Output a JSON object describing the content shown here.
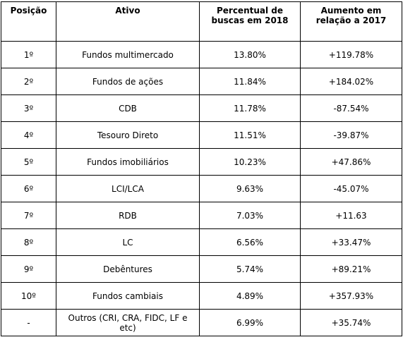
{
  "table": {
    "headers": {
      "posicao": "Posição",
      "ativo": "Ativo",
      "percentual": "Percentual de buscas em 2018",
      "aumento": "Aumento em relação a 2017"
    },
    "rows": [
      {
        "posicao": "1º",
        "ativo": "Fundos multimercado",
        "percentual": "13.80%",
        "aumento": "+119.78%"
      },
      {
        "posicao": "2º",
        "ativo": "Fundos de ações",
        "percentual": "11.84%",
        "aumento": "+184.02%"
      },
      {
        "posicao": "3º",
        "ativo": "CDB",
        "percentual": "11.78%",
        "aumento": "-87.54%"
      },
      {
        "posicao": "4º",
        "ativo": "Tesouro Direto",
        "percentual": "11.51%",
        "aumento": "-39.87%"
      },
      {
        "posicao": "5º",
        "ativo": "Fundos imobiliários",
        "percentual": "10.23%",
        "aumento": "+47.86%"
      },
      {
        "posicao": "6º",
        "ativo": "LCI/LCA",
        "percentual": "9.63%",
        "aumento": "-45.07%"
      },
      {
        "posicao": "7º",
        "ativo": "RDB",
        "percentual": "7.03%",
        "aumento": "+11.63"
      },
      {
        "posicao": "8º",
        "ativo": "LC",
        "percentual": "6.56%",
        "aumento": "+33.47%"
      },
      {
        "posicao": "9º",
        "ativo": "Debêntures",
        "percentual": "5.74%",
        "aumento": "+89.21%"
      },
      {
        "posicao": "10º",
        "ativo": "Fundos cambiais",
        "percentual": "4.89%",
        "aumento": "+357.93%"
      },
      {
        "posicao": "-",
        "ativo": "Outros (CRI, CRA, FIDC, LF e etc)",
        "percentual": "6.99%",
        "aumento": "+35.74%"
      }
    ]
  }
}
